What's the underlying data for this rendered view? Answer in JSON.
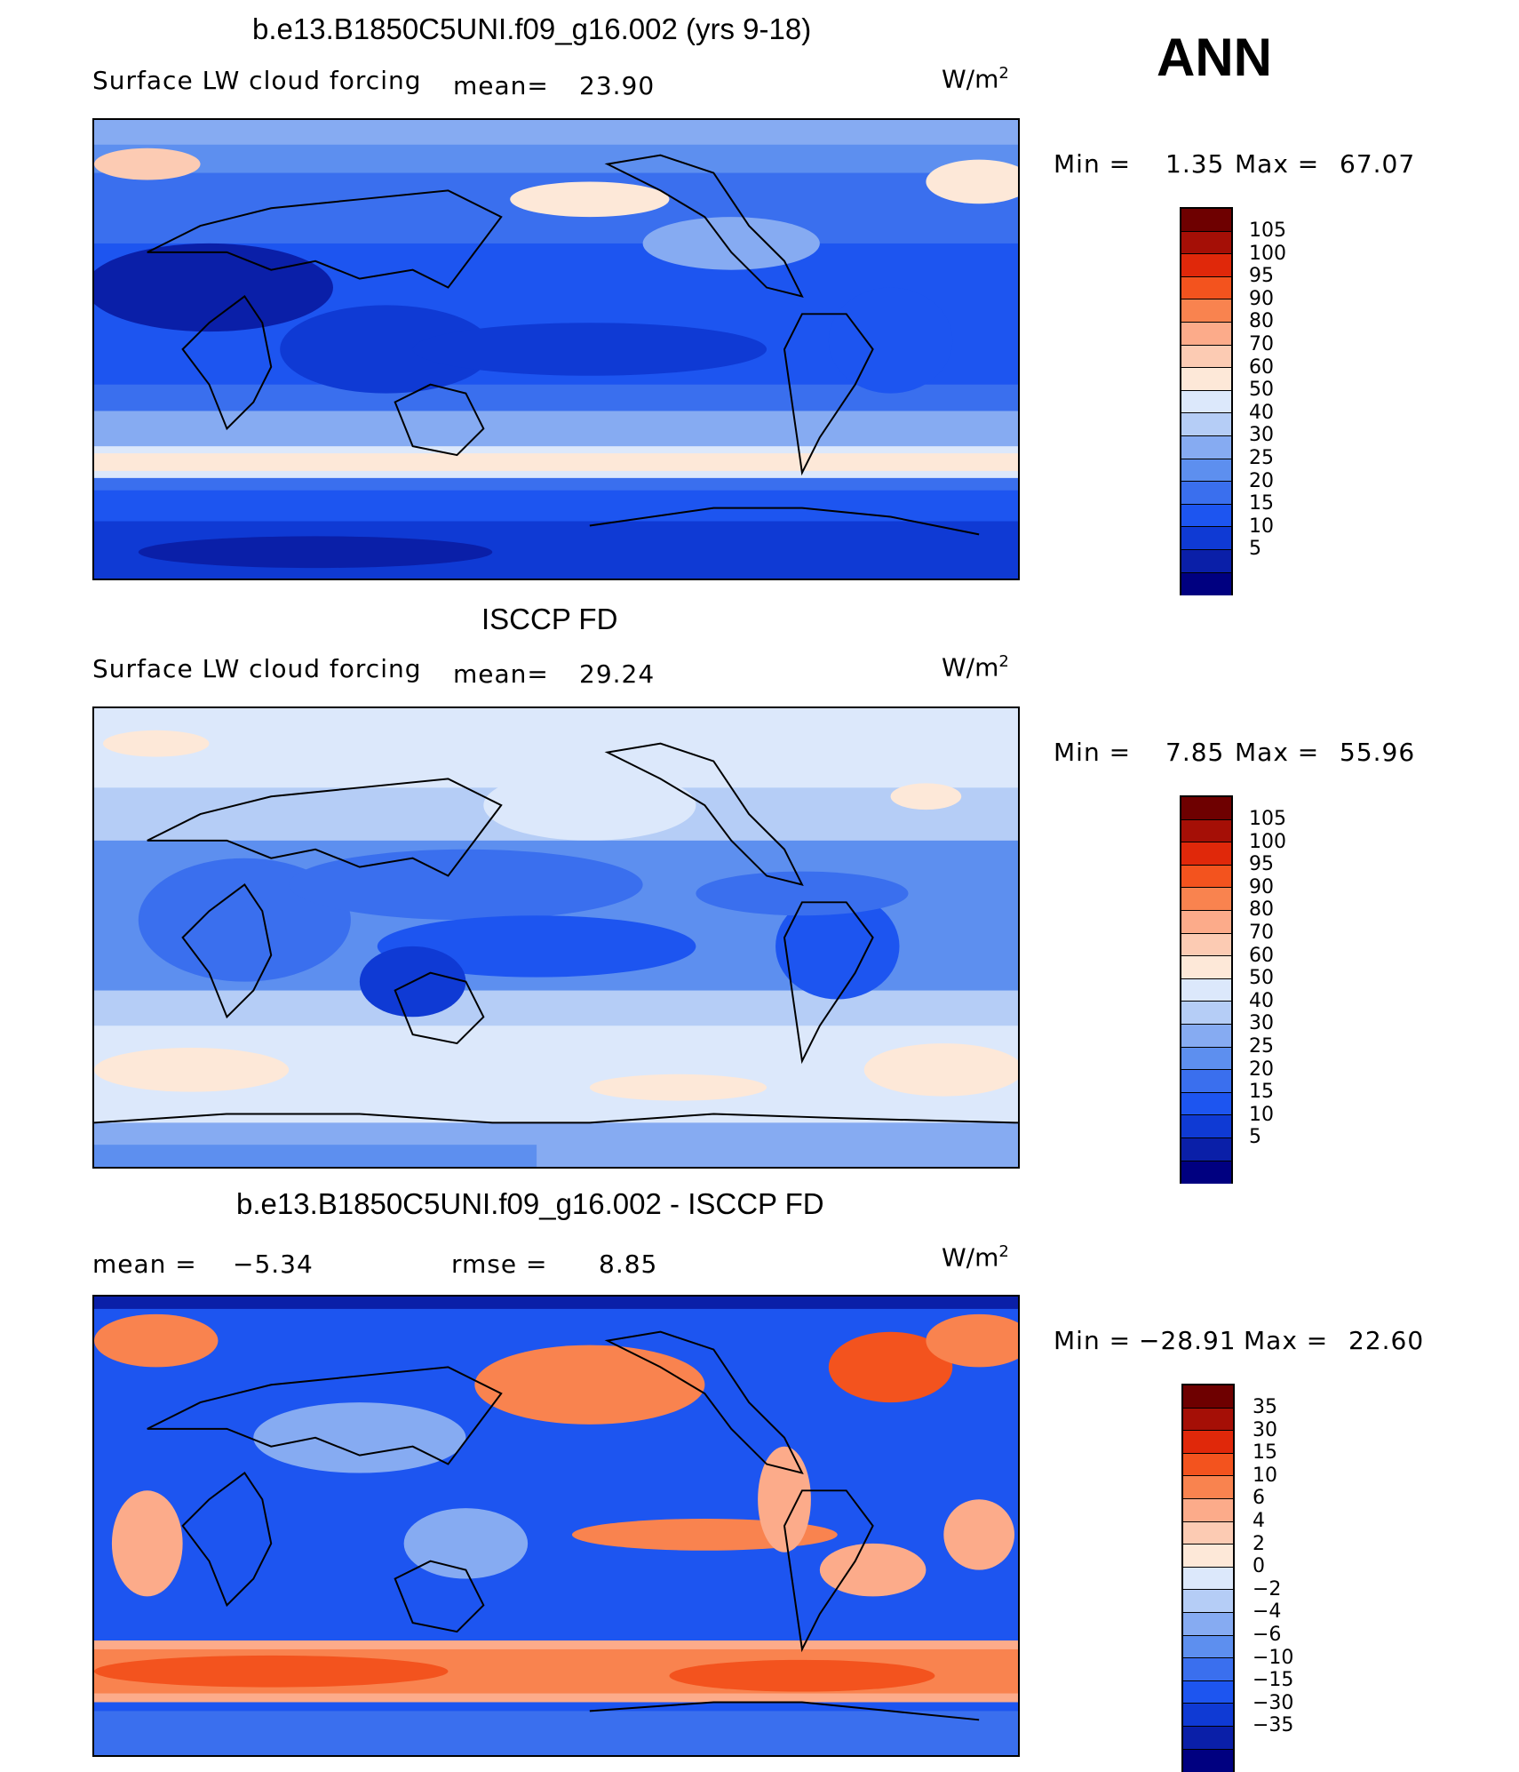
{
  "season": "ANN",
  "colors_std": [
    "#000080",
    "#0a1fa8",
    "#0f3ad4",
    "#1d55f0",
    "#3a6fee",
    "#5d8fef",
    "#86abf2",
    "#b5cdf6",
    "#dce8fb",
    "#fde8d8",
    "#fccbb3",
    "#fcab8a",
    "#f9834f",
    "#f3531e",
    "#e0280a",
    "#a50f06",
    "#6e0000"
  ],
  "colors_diff": [
    "#000080",
    "#0a1fa8",
    "#0f3ad4",
    "#1d55f0",
    "#3a6fee",
    "#5d8fef",
    "#86abf2",
    "#b5cdf6",
    "#dce8fb",
    "#fde8d8",
    "#fccbb3",
    "#fcab8a",
    "#f9834f",
    "#f3531e",
    "#e0280a",
    "#a50f06",
    "#6e0000"
  ],
  "panels": [
    {
      "title": "b.e13.B1850C5UNI.f09_g16.002 (yrs 9-18)",
      "variable": "Surface LW cloud forcing",
      "mean_label": "mean=",
      "mean_value": "23.90",
      "units_base": "W/m",
      "units_exp": "2",
      "min_label": "Min =",
      "min_value": "1.35",
      "max_label": "Max =",
      "max_value": "67.07",
      "levels": [
        "105",
        "100",
        "95",
        "90",
        "80",
        "70",
        "60",
        "50",
        "40",
        "30",
        "25",
        "20",
        "15",
        "10",
        "5"
      ]
    },
    {
      "title": "ISCCP FD",
      "variable": "Surface LW cloud forcing",
      "mean_label": "mean=",
      "mean_value": "29.24",
      "units_base": "W/m",
      "units_exp": "2",
      "min_label": "Min =",
      "min_value": "7.85",
      "max_label": "Max =",
      "max_value": "55.96",
      "levels": [
        "105",
        "100",
        "95",
        "90",
        "80",
        "70",
        "60",
        "50",
        "40",
        "30",
        "25",
        "20",
        "15",
        "10",
        "5"
      ]
    },
    {
      "title": "b.e13.B1850C5UNI.f09_g16.002 - ISCCP FD",
      "mean_label": "mean =",
      "mean_value": "−5.34",
      "rmse_label": "rmse =",
      "rmse_value": "8.85",
      "units_base": "W/m",
      "units_exp": "2",
      "min_label": "Min =",
      "min_value": "−28.91",
      "max_label": "Max =",
      "max_value": "22.60",
      "levels": [
        "35",
        "30",
        "15",
        "10",
        "6",
        "4",
        "2",
        "0",
        "−2",
        "−4",
        "−6",
        "−10",
        "−15",
        "−30",
        "−35"
      ]
    }
  ]
}
